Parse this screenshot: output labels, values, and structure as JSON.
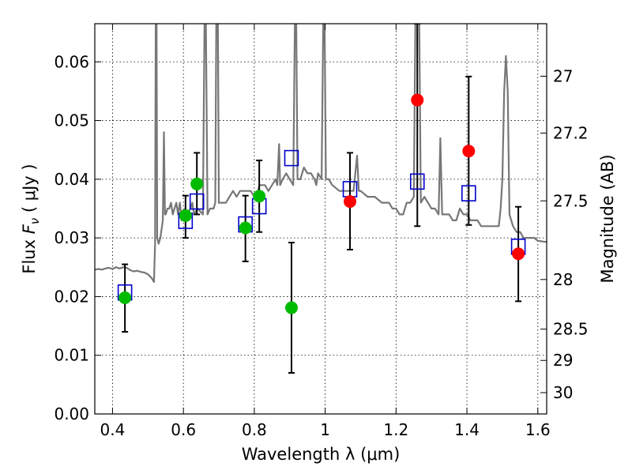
{
  "chart_data": {
    "type": "scatter",
    "xlabel": "Wavelength  λ (μm)",
    "ylabel_prefix": "Flux  ",
    "ylabel_var": "F",
    "ylabel_sub": "ν",
    "ylabel_unit": "  ( μJy )",
    "y2label": "Magnitude (AB)",
    "xlim": [
      0.35,
      1.625
    ],
    "ylim": [
      0.0,
      0.0665
    ],
    "grid": true,
    "x_ticks": [
      {
        "v": 0.4,
        "label": "0.4"
      },
      {
        "v": 0.6,
        "label": "0.6"
      },
      {
        "v": 0.8,
        "label": "0.8"
      },
      {
        "v": 1.0,
        "label": "1"
      },
      {
        "v": 1.2,
        "label": "1.2"
      },
      {
        "v": 1.4,
        "label": "1.4"
      },
      {
        "v": 1.6,
        "label": "1.6"
      }
    ],
    "y_ticks": [
      {
        "v": 0.0,
        "label": "0.00"
      },
      {
        "v": 0.01,
        "label": "0.01"
      },
      {
        "v": 0.02,
        "label": "0.02"
      },
      {
        "v": 0.03,
        "label": "0.03"
      },
      {
        "v": 0.04,
        "label": "0.04"
      },
      {
        "v": 0.05,
        "label": "0.05"
      },
      {
        "v": 0.06,
        "label": "0.06"
      }
    ],
    "y2_ticks": [
      {
        "mag": 27,
        "label": "27"
      },
      {
        "mag": 27.2,
        "label": "27.2"
      },
      {
        "mag": 27.5,
        "label": "27.5"
      },
      {
        "mag": 28,
        "label": "28"
      },
      {
        "mag": 28.5,
        "label": "28.5"
      },
      {
        "mag": 29,
        "label": "29"
      },
      {
        "mag": 30,
        "label": "30"
      }
    ],
    "series": [
      {
        "marker": "square",
        "color": "#0000cc",
        "points": [
          [
            0.435,
            0.0207
          ],
          [
            0.606,
            0.0329
          ],
          [
            0.638,
            0.0362
          ],
          [
            0.775,
            0.0323
          ],
          [
            0.814,
            0.0354
          ],
          [
            0.905,
            0.0436
          ],
          [
            1.07,
            0.0383
          ],
          [
            1.26,
            0.0396
          ],
          [
            1.405,
            0.0376
          ],
          [
            1.545,
            0.0285
          ]
        ]
      },
      {
        "marker": "circle",
        "color": "#00bb00",
        "points": [
          [
            0.435,
            0.0198,
            0.014,
            0.0255
          ],
          [
            0.606,
            0.0338,
            0.03,
            0.0372
          ],
          [
            0.638,
            0.0392,
            0.034,
            0.0445
          ],
          [
            0.775,
            0.0317,
            0.026,
            0.0372
          ],
          [
            0.814,
            0.0371,
            0.031,
            0.0432
          ],
          [
            0.905,
            0.0181,
            0.007,
            0.0292
          ]
        ]
      },
      {
        "marker": "circle",
        "color": "#ff0000",
        "points": [
          [
            1.07,
            0.0362,
            0.028,
            0.0445
          ],
          [
            1.26,
            0.0535,
            0.032,
            0.0665
          ],
          [
            1.405,
            0.0448,
            0.0322,
            0.0575
          ],
          [
            1.545,
            0.0273,
            0.0192,
            0.0353
          ]
        ]
      }
    ],
    "model_spectrum": {
      "color": "#777777",
      "points": [
        [
          0.35,
          0.0246
        ],
        [
          0.36,
          0.0247
        ],
        [
          0.37,
          0.0246
        ],
        [
          0.38,
          0.0248
        ],
        [
          0.39,
          0.0249
        ],
        [
          0.4,
          0.0247
        ],
        [
          0.41,
          0.025
        ],
        [
          0.42,
          0.0248
        ],
        [
          0.43,
          0.025
        ],
        [
          0.44,
          0.0249
        ],
        [
          0.45,
          0.0245
        ],
        [
          0.46,
          0.0243
        ],
        [
          0.47,
          0.0244
        ],
        [
          0.48,
          0.0242
        ],
        [
          0.49,
          0.0241
        ],
        [
          0.5,
          0.0238
        ],
        [
          0.51,
          0.0232
        ],
        [
          0.517,
          0.0225
        ],
        [
          0.52,
          0.029
        ],
        [
          0.522,
          0.07
        ],
        [
          0.524,
          0.07
        ],
        [
          0.526,
          0.03
        ],
        [
          0.53,
          0.029
        ],
        [
          0.535,
          0.03
        ],
        [
          0.542,
          0.033
        ],
        [
          0.545,
          0.048
        ],
        [
          0.548,
          0.034
        ],
        [
          0.55,
          0.034
        ],
        [
          0.555,
          0.035
        ],
        [
          0.56,
          0.035
        ],
        [
          0.565,
          0.036
        ],
        [
          0.57,
          0.034
        ],
        [
          0.575,
          0.035
        ],
        [
          0.58,
          0.036
        ],
        [
          0.585,
          0.034
        ],
        [
          0.59,
          0.036
        ],
        [
          0.595,
          0.033
        ],
        [
          0.6,
          0.034
        ],
        [
          0.605,
          0.035
        ],
        [
          0.61,
          0.034
        ],
        [
          0.62,
          0.035
        ],
        [
          0.625,
          0.036
        ],
        [
          0.63,
          0.034
        ],
        [
          0.64,
          0.035
        ],
        [
          0.655,
          0.034
        ],
        [
          0.66,
          0.07
        ],
        [
          0.663,
          0.07
        ],
        [
          0.668,
          0.034
        ],
        [
          0.675,
          0.035
        ],
        [
          0.685,
          0.035
        ],
        [
          0.69,
          0.036
        ],
        [
          0.693,
          0.07
        ],
        [
          0.697,
          0.07
        ],
        [
          0.7,
          0.036
        ],
        [
          0.71,
          0.036
        ],
        [
          0.72,
          0.036
        ],
        [
          0.73,
          0.037
        ],
        [
          0.74,
          0.038
        ],
        [
          0.75,
          0.037
        ],
        [
          0.76,
          0.038
        ],
        [
          0.77,
          0.038
        ],
        [
          0.78,
          0.038
        ],
        [
          0.79,
          0.038
        ],
        [
          0.8,
          0.037
        ],
        [
          0.81,
          0.038
        ],
        [
          0.815,
          0.039
        ],
        [
          0.82,
          0.039
        ],
        [
          0.83,
          0.039
        ],
        [
          0.84,
          0.038
        ],
        [
          0.85,
          0.039
        ],
        [
          0.86,
          0.04
        ],
        [
          0.865,
          0.039
        ],
        [
          0.87,
          0.046
        ],
        [
          0.873,
          0.039
        ],
        [
          0.88,
          0.04
        ],
        [
          0.89,
          0.041
        ],
        [
          0.9,
          0.04
        ],
        [
          0.91,
          0.039
        ],
        [
          0.915,
          0.07
        ],
        [
          0.918,
          0.07
        ],
        [
          0.922,
          0.04
        ],
        [
          0.93,
          0.04
        ],
        [
          0.94,
          0.042
        ],
        [
          0.95,
          0.041
        ],
        [
          0.96,
          0.041
        ],
        [
          0.97,
          0.04
        ],
        [
          0.975,
          0.039
        ],
        [
          0.98,
          0.041
        ],
        [
          0.99,
          0.04
        ],
        [
          0.995,
          0.07
        ],
        [
          0.998,
          0.07
        ],
        [
          1.002,
          0.04
        ],
        [
          1.01,
          0.04
        ],
        [
          1.02,
          0.039
        ],
        [
          1.04,
          0.038
        ],
        [
          1.06,
          0.038
        ],
        [
          1.08,
          0.038
        ],
        [
          1.09,
          0.044
        ],
        [
          1.095,
          0.038
        ],
        [
          1.1,
          0.038
        ],
        [
          1.12,
          0.037
        ],
        [
          1.14,
          0.037
        ],
        [
          1.16,
          0.036
        ],
        [
          1.18,
          0.036
        ],
        [
          1.19,
          0.035
        ],
        [
          1.2,
          0.035
        ],
        [
          1.21,
          0.034
        ],
        [
          1.22,
          0.034
        ],
        [
          1.23,
          0.036
        ],
        [
          1.24,
          0.036
        ],
        [
          1.25,
          0.037
        ],
        [
          1.255,
          0.07
        ],
        [
          1.265,
          0.07
        ],
        [
          1.27,
          0.036
        ],
        [
          1.28,
          0.037
        ],
        [
          1.29,
          0.036
        ],
        [
          1.3,
          0.035
        ],
        [
          1.31,
          0.035
        ],
        [
          1.32,
          0.034
        ],
        [
          1.325,
          0.047
        ],
        [
          1.33,
          0.034
        ],
        [
          1.34,
          0.034
        ],
        [
          1.35,
          0.034
        ],
        [
          1.36,
          0.033
        ],
        [
          1.37,
          0.033
        ],
        [
          1.38,
          0.035
        ],
        [
          1.39,
          0.034
        ],
        [
          1.4,
          0.034
        ],
        [
          1.41,
          0.033
        ],
        [
          1.42,
          0.033
        ],
        [
          1.43,
          0.033
        ],
        [
          1.44,
          0.032
        ],
        [
          1.45,
          0.032
        ],
        [
          1.46,
          0.032
        ],
        [
          1.47,
          0.032
        ],
        [
          1.48,
          0.032
        ],
        [
          1.49,
          0.032
        ],
        [
          1.495,
          0.035
        ],
        [
          1.5,
          0.04
        ],
        [
          1.505,
          0.055
        ],
        [
          1.51,
          0.061
        ],
        [
          1.515,
          0.055
        ],
        [
          1.52,
          0.034
        ],
        [
          1.53,
          0.032
        ],
        [
          1.54,
          0.031
        ],
        [
          1.55,
          0.031
        ],
        [
          1.56,
          0.03
        ],
        [
          1.57,
          0.03
        ],
        [
          1.58,
          0.03
        ],
        [
          1.59,
          0.03
        ],
        [
          1.6,
          0.0295
        ],
        [
          1.625,
          0.0293
        ]
      ]
    }
  }
}
